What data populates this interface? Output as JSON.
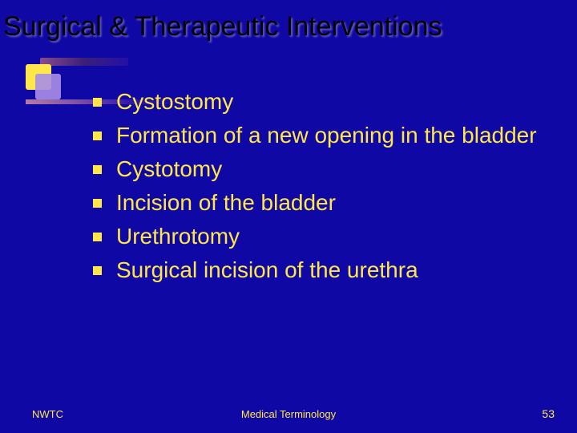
{
  "title": "Surgical & Therapeutic Interventions",
  "bullets": {
    "0": "Cystostomy",
    "1": "Formation of a new opening in the bladder",
    "2": "Cystotomy",
    "3": "Incision of the bladder",
    "4": "Urethrotomy",
    "5": "Surgical incision of the urethra"
  },
  "footer": {
    "left": "NWTC",
    "center": "Medical Terminology",
    "page": "53"
  },
  "colors": {
    "background": "#1008a4",
    "accent": "#ffe74a",
    "title": "#000000"
  }
}
